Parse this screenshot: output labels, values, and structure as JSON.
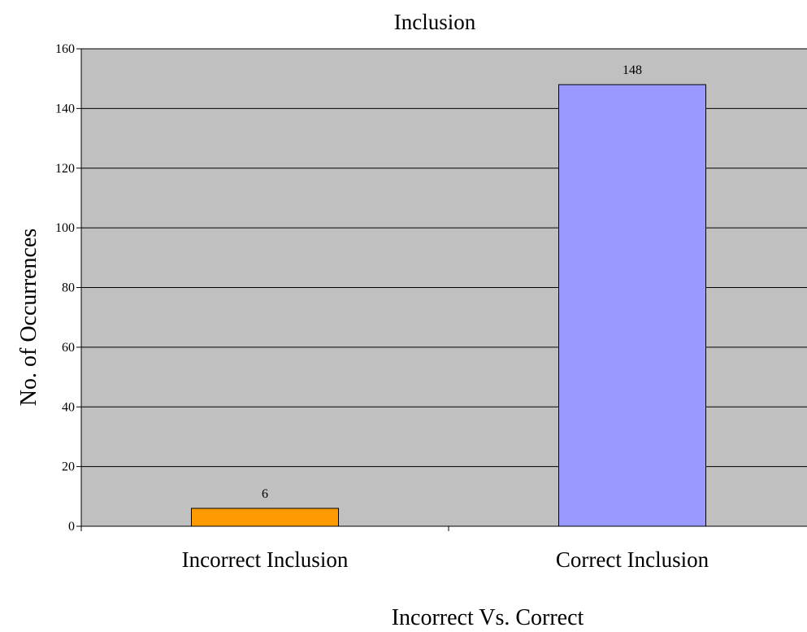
{
  "chart_data": {
    "type": "bar",
    "title": "Inclusion",
    "xlabel": "Incorrect Vs. Correct",
    "ylabel": "No. of Occurrences",
    "categories": [
      "Incorrect Inclusion",
      "Correct Inclusion"
    ],
    "values": [
      6,
      148
    ],
    "data_labels": [
      "6",
      "148"
    ],
    "bar_colors": [
      "#FF9900",
      "#9999FF"
    ],
    "ylim": [
      0,
      160
    ],
    "yticks": [
      0,
      20,
      40,
      60,
      80,
      100,
      120,
      140,
      160
    ],
    "ytick_labels": [
      "0",
      "20",
      "40",
      "60",
      "80",
      "100",
      "120",
      "140",
      "160"
    ],
    "grid": true,
    "plot_background": "#C0C0C0",
    "legend": "none"
  }
}
